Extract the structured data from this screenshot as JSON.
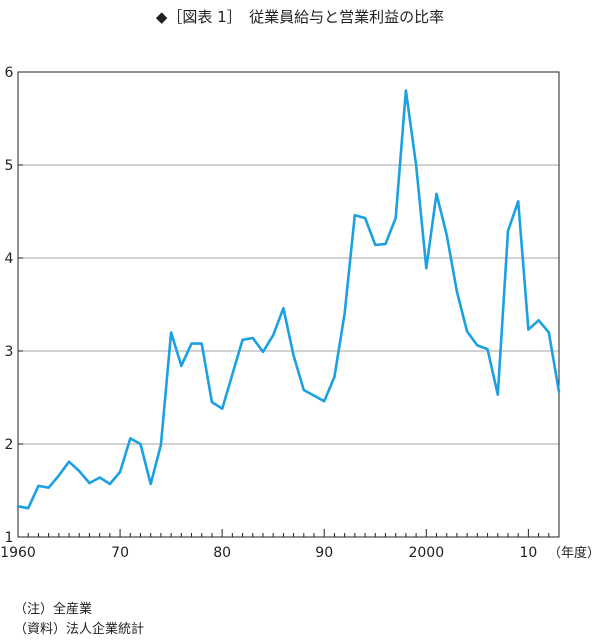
{
  "chart_data": {
    "type": "line",
    "title": "◆［図表 1］　従業員給与と営業利益の比率",
    "x_unit_label": "（年度）",
    "xlim": [
      1960,
      2013
    ],
    "ylim": [
      1,
      6
    ],
    "y_ticks": [
      "1",
      "2",
      "3",
      "4",
      "5",
      "6"
    ],
    "y_tick_values": [
      1,
      2,
      3,
      4,
      5,
      6
    ],
    "x_ticks": [
      "1960",
      "70",
      "80",
      "90",
      "2000",
      "10"
    ],
    "x_tick_values": [
      1960,
      1970,
      1980,
      1990,
      2000,
      2010
    ],
    "grid": true,
    "line_color": "#1ba1e2",
    "series": [
      {
        "x": [
          1960,
          1961,
          1962,
          1963,
          1964,
          1965,
          1966,
          1967,
          1968,
          1969,
          1970,
          1971,
          1972,
          1973,
          1974,
          1975,
          1976,
          1977,
          1978,
          1979,
          1980,
          1981,
          1982,
          1983,
          1984,
          1985,
          1986,
          1987,
          1988,
          1989,
          1990,
          1991,
          1992,
          1993,
          1994,
          1995,
          1996,
          1997,
          1998,
          1999,
          2000,
          2001,
          2002,
          2003,
          2004,
          2005,
          2006,
          2007,
          2008,
          2009,
          2010,
          2011,
          2012,
          2013
        ],
        "values": [
          1.33,
          1.31,
          1.55,
          1.53,
          1.66,
          1.81,
          1.71,
          1.58,
          1.64,
          1.57,
          1.7,
          2.06,
          2.0,
          1.57,
          1.99,
          3.2,
          2.84,
          3.08,
          3.08,
          2.45,
          2.38,
          2.75,
          3.12,
          3.14,
          2.99,
          3.17,
          3.46,
          2.95,
          2.58,
          2.52,
          2.46,
          2.72,
          3.4,
          4.46,
          4.43,
          4.14,
          4.15,
          4.43,
          5.8,
          5.0,
          3.89,
          4.69,
          4.25,
          3.64,
          3.21,
          3.06,
          3.02,
          2.53,
          4.29,
          4.61,
          3.23,
          3.33,
          3.2,
          2.56
        ]
      }
    ]
  },
  "notes": {
    "note1": "（注）全産業",
    "note2": "（資料）法人企業統計"
  }
}
